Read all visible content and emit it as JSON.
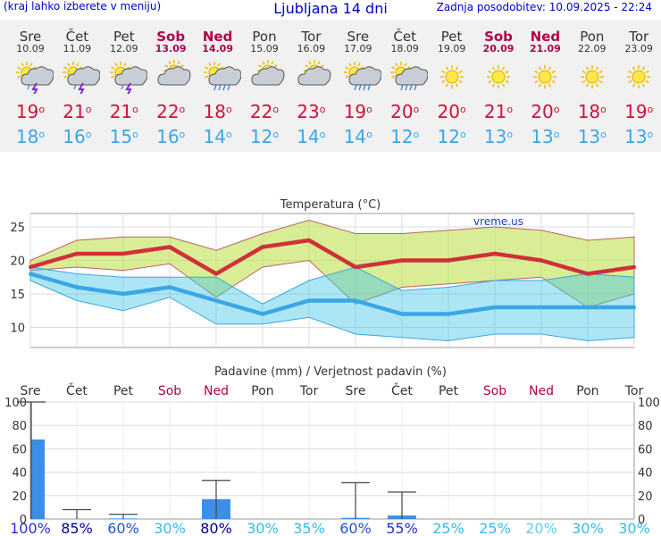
{
  "header": {
    "left": "(kraj lahko izberete v meniju)",
    "title": "Ljubljana 14 dni",
    "updated": "Zadnja posodobitev: 10.09.2025 - 22:24"
  },
  "degree_symbol": "o",
  "days": [
    {
      "name": "Sre",
      "date": "10.09",
      "weekend": false,
      "icon": "sun-cloud-thunderstorm-icon",
      "max": "19",
      "min": "18"
    },
    {
      "name": "Čet",
      "date": "11.09",
      "weekend": false,
      "icon": "sun-cloud-thunderstorm-icon",
      "max": "21",
      "min": "16"
    },
    {
      "name": "Pet",
      "date": "12.09",
      "weekend": false,
      "icon": "sun-cloud-thunderstorm-icon",
      "max": "21",
      "min": "15"
    },
    {
      "name": "Sob",
      "date": "13.09",
      "weekend": true,
      "icon": "sun-cloud-icon",
      "max": "22",
      "min": "16"
    },
    {
      "name": "Ned",
      "date": "14.09",
      "weekend": true,
      "icon": "sun-cloud-rain-icon",
      "max": "18",
      "min": "14"
    },
    {
      "name": "Pon",
      "date": "15.09",
      "weekend": false,
      "icon": "sun-cloud-icon",
      "max": "22",
      "min": "12"
    },
    {
      "name": "Tor",
      "date": "16.09",
      "weekend": false,
      "icon": "sun-cloud-icon",
      "max": "23",
      "min": "14"
    },
    {
      "name": "Sre",
      "date": "17.09",
      "weekend": false,
      "icon": "sun-cloud-rain-icon",
      "max": "19",
      "min": "14"
    },
    {
      "name": "Čet",
      "date": "18.09",
      "weekend": false,
      "icon": "sun-cloud-rain-icon",
      "max": "20",
      "min": "12"
    },
    {
      "name": "Pet",
      "date": "19.09",
      "weekend": false,
      "icon": "sun-icon",
      "max": "20",
      "min": "12"
    },
    {
      "name": "Sob",
      "date": "20.09",
      "weekend": true,
      "icon": "sun-icon",
      "max": "21",
      "min": "13"
    },
    {
      "name": "Ned",
      "date": "21.09",
      "weekend": true,
      "icon": "sun-icon",
      "max": "20",
      "min": "13"
    },
    {
      "name": "Pon",
      "date": "22.09",
      "weekend": false,
      "icon": "sun-icon",
      "max": "18",
      "min": "13"
    },
    {
      "name": "Tor",
      "date": "23.09",
      "weekend": false,
      "icon": "sun-icon",
      "max": "19",
      "min": "13"
    }
  ],
  "colors": {
    "max": "#d0103a",
    "min": "#3aa6e6",
    "weekend": "#b0004a",
    "bar": "#3b8fe8"
  },
  "chart_data": [
    {
      "type": "line",
      "title": "Temperatura (°C)",
      "watermark": "vreme.us",
      "ylim": [
        7,
        27
      ],
      "yticks": [
        10,
        15,
        20,
        25
      ],
      "x": [
        0,
        1,
        2,
        3,
        4,
        5,
        6,
        7,
        8,
        9,
        10,
        11,
        12,
        13
      ],
      "series": [
        {
          "name": "max",
          "values": [
            19,
            21,
            21,
            22,
            18,
            22,
            23,
            19,
            20,
            20,
            21,
            20,
            18,
            19
          ]
        },
        {
          "name": "min",
          "values": [
            18,
            16,
            15,
            16,
            14,
            12,
            14,
            14,
            12,
            12,
            13,
            13,
            13,
            13
          ]
        },
        {
          "name": "max_upper",
          "values": [
            20,
            23,
            23.5,
            23.5,
            21.5,
            24,
            26,
            24,
            24,
            24.5,
            25,
            24.5,
            23,
            23.5
          ]
        },
        {
          "name": "max_lower",
          "values": [
            18.5,
            19,
            18.5,
            19.5,
            14.5,
            19,
            20,
            13.5,
            16,
            16.5,
            17,
            17.5,
            13,
            15
          ]
        },
        {
          "name": "min_upper",
          "values": [
            19,
            18,
            17.5,
            17.5,
            17.5,
            13.5,
            17,
            19,
            15.5,
            16,
            17,
            17,
            18,
            17.5
          ]
        },
        {
          "name": "min_lower",
          "values": [
            17,
            14,
            12.5,
            14.5,
            10.5,
            10.5,
            11.5,
            9,
            8.5,
            8,
            9,
            9,
            8,
            8.5
          ]
        }
      ]
    },
    {
      "type": "bar",
      "title": "Padavine (mm) / Verjetnost padavin (%)",
      "categories": [
        "Sre",
        "Čet",
        "Pet",
        "Sob",
        "Ned",
        "Pon",
        "Tor",
        "Sre",
        "Čet",
        "Pet",
        "Sob",
        "Ned",
        "Pon",
        "Tor"
      ],
      "ylim": [
        0,
        100
      ],
      "yticks": [
        0,
        20,
        40,
        60,
        80,
        100
      ],
      "values": [
        68,
        0,
        0.5,
        0,
        17,
        0,
        0,
        1,
        3,
        0,
        0,
        0,
        0,
        0
      ],
      "error_high": [
        100,
        8,
        4,
        0,
        33,
        0,
        0,
        31,
        23,
        0,
        0,
        0,
        0,
        0
      ],
      "probability": [
        "100%",
        "85%",
        "60%",
        "30%",
        "80%",
        "30%",
        "35%",
        "60%",
        "55%",
        "25%",
        "25%",
        "20%",
        "30%",
        "30%"
      ],
      "probability_colors": [
        "#2b2bd6",
        "#000099",
        "#2255cc",
        "#33bbee",
        "#000099",
        "#33bbee",
        "#33bbee",
        "#2255cc",
        "#2b2bd6",
        "#33bbee",
        "#33bbee",
        "#66ccf0",
        "#33bbee",
        "#33bbee"
      ]
    }
  ]
}
